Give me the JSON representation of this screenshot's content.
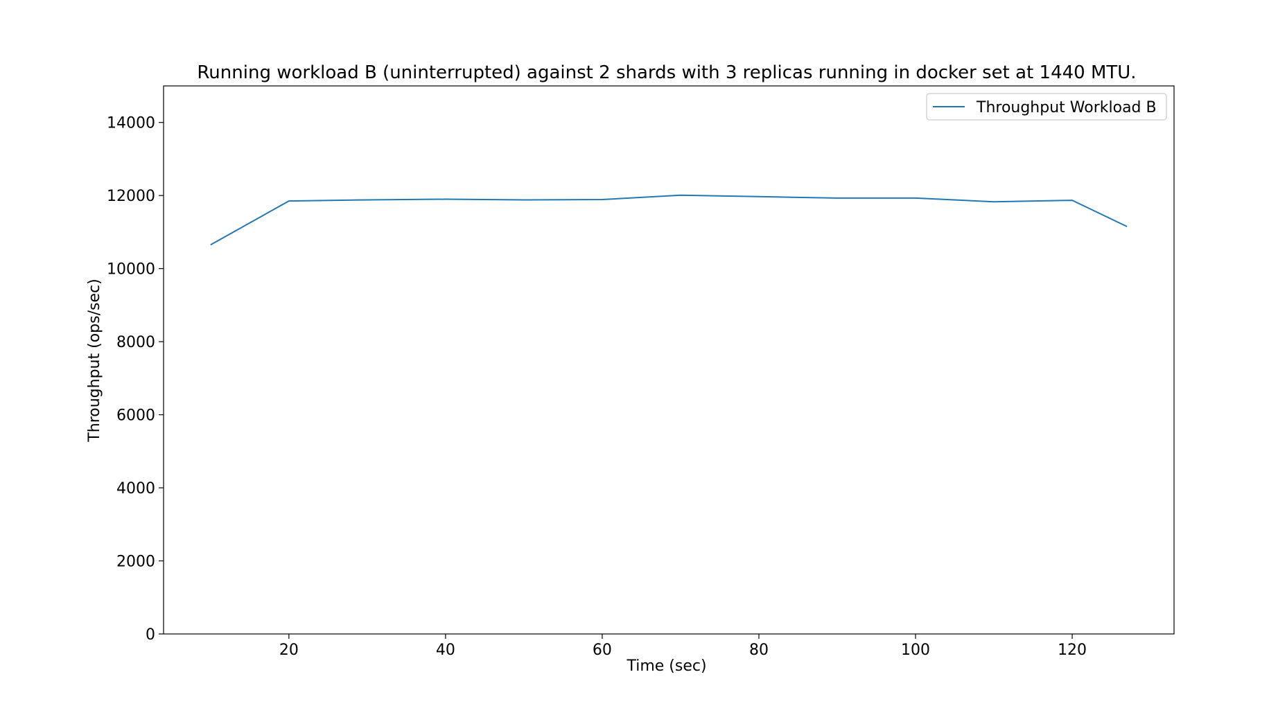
{
  "chart_data": {
    "type": "line",
    "title": "Running workload B (uninterrupted) against 2 shards with 3 replicas running in docker set at 1440 MTU.",
    "xlabel": "Time (sec)",
    "ylabel": "Throughput (ops/sec)",
    "xlim": [
      4,
      133
    ],
    "ylim": [
      0,
      15000
    ],
    "xticks": [
      20,
      40,
      60,
      80,
      100,
      120
    ],
    "yticks": [
      0,
      2000,
      4000,
      6000,
      8000,
      10000,
      12000,
      14000
    ],
    "grid": false,
    "legend_position": "top-right",
    "series": [
      {
        "name": "Throughput Workload B",
        "color": "#1f77b4",
        "x": [
          10,
          20,
          30,
          40,
          50,
          60,
          70,
          80,
          90,
          100,
          110,
          120,
          127
        ],
        "y": [
          10650,
          11850,
          11880,
          11900,
          11880,
          11890,
          12010,
          11970,
          11930,
          11930,
          11830,
          11870,
          11150
        ]
      }
    ]
  }
}
